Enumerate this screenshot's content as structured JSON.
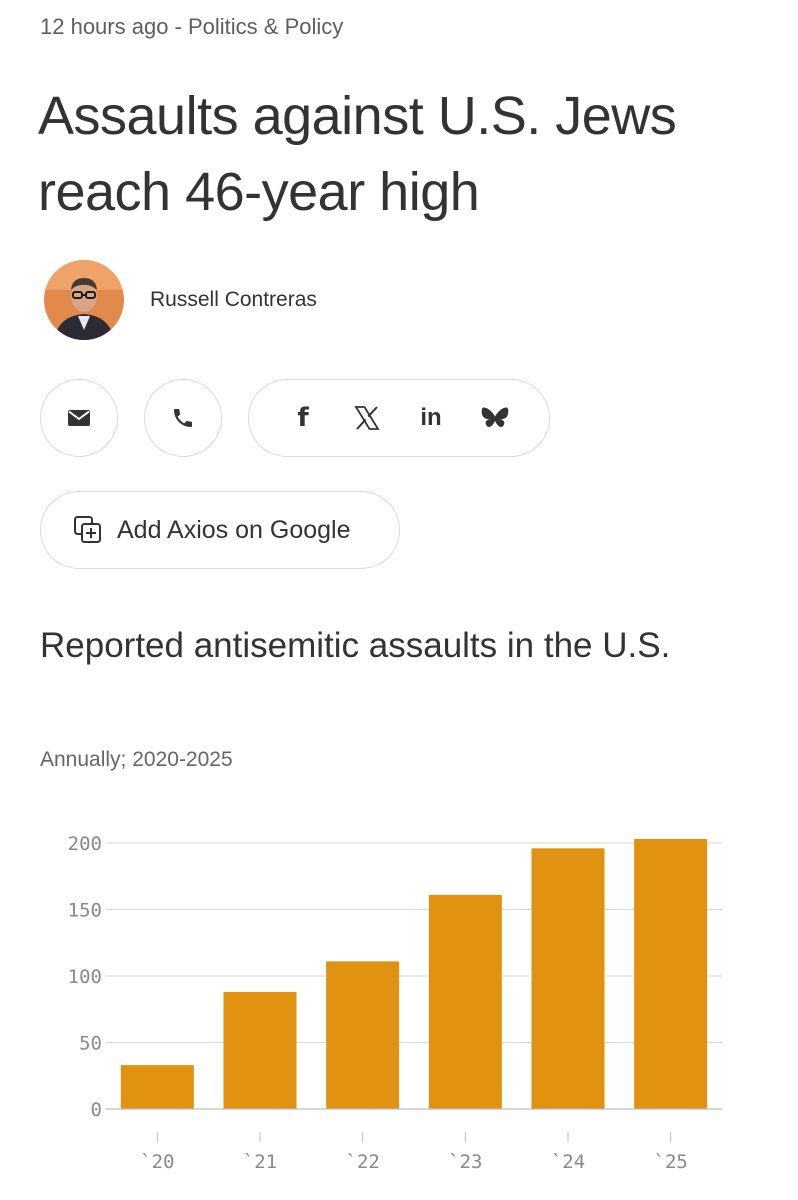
{
  "article": {
    "meta": "12 hours ago - Politics & Policy",
    "headline": "Assaults against U.S. Jews reach 46-year high",
    "author": "Russell Contreras"
  },
  "share": {
    "icons": [
      "email-icon",
      "phone-icon",
      "facebook-icon",
      "x-icon",
      "linkedin-icon",
      "bluesky-icon"
    ],
    "facebook_label": "f",
    "x_label": "𝕏",
    "linkedin_label": "in"
  },
  "google_button": {
    "label": "Add Axios on Google"
  },
  "chart": {
    "title": "Reported antisemitic assaults in the U.S.",
    "subtitle": "Annually; 2020-2025"
  },
  "chart_data": {
    "type": "bar",
    "categories": [
      "`20",
      "`21",
      "`22",
      "`23",
      "`24",
      "`25"
    ],
    "values": [
      33,
      88,
      111,
      161,
      196,
      203
    ],
    "yticks": [
      0,
      50,
      100,
      150,
      200
    ],
    "ylim": [
      0,
      200
    ],
    "color": "#e09210",
    "grid": true
  }
}
